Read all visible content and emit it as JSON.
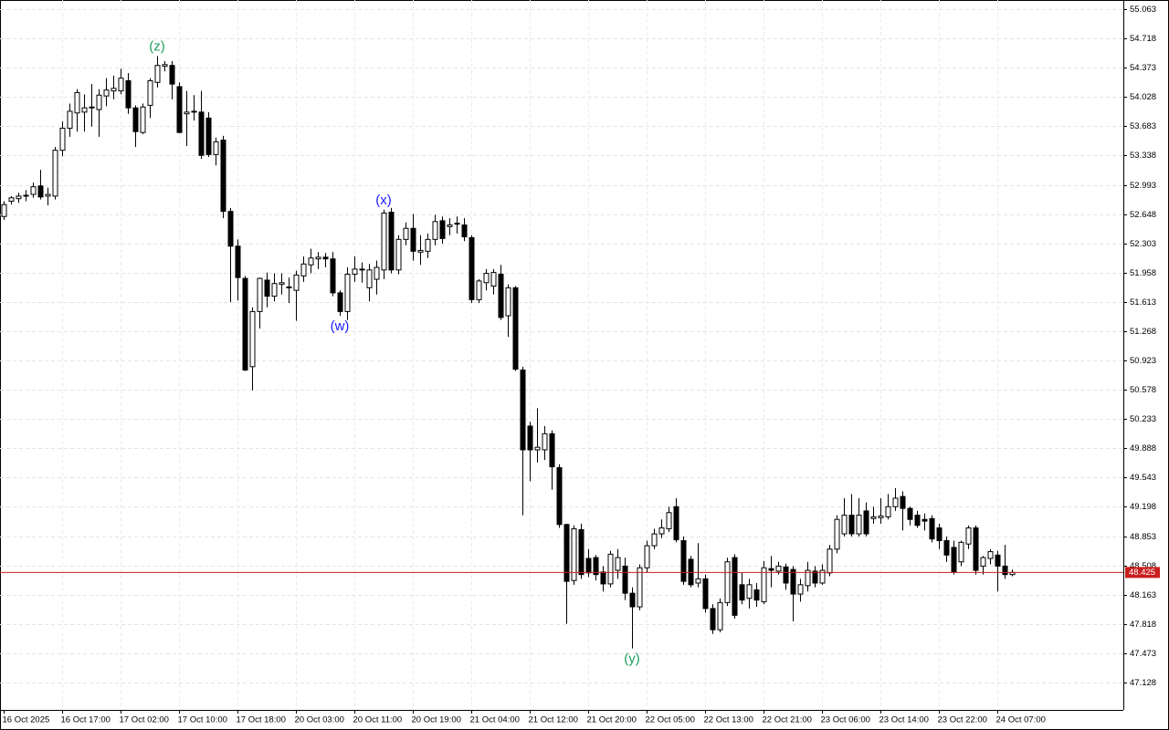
{
  "chart_data": {
    "type": "candlestick",
    "categories": [
      "16 Oct 2025",
      null,
      null,
      null,
      null,
      null,
      null,
      null,
      "16 Oct 17:00",
      null,
      null,
      null,
      null,
      null,
      null,
      null,
      "17 Oct 02:00",
      null,
      null,
      null,
      null,
      null,
      null,
      null,
      "17 Oct 10:00",
      null,
      null,
      null,
      null,
      null,
      null,
      null,
      "17 Oct 18:00",
      null,
      null,
      null,
      null,
      null,
      null,
      null,
      "20 Oct 03:00",
      null,
      null,
      null,
      null,
      null,
      null,
      null,
      "20 Oct 11:00",
      null,
      null,
      null,
      null,
      null,
      null,
      null,
      "20 Oct 19:00",
      null,
      null,
      null,
      null,
      null,
      null,
      null,
      "21 Oct 04:00",
      null,
      null,
      null,
      null,
      null,
      null,
      null,
      "21 Oct 12:00",
      null,
      null,
      null,
      null,
      null,
      null,
      null,
      "21 Oct 20:00",
      null,
      null,
      null,
      null,
      null,
      null,
      null,
      "22 Oct 05:00",
      null,
      null,
      null,
      null,
      null,
      null,
      null,
      "22 Oct 13:00",
      null,
      null,
      null,
      null,
      null,
      null,
      null,
      "22 Oct 21:00",
      null,
      null,
      null,
      null,
      null,
      null,
      null,
      "23 Oct 06:00",
      null,
      null,
      null,
      null,
      null,
      null,
      null,
      "23 Oct 14:00",
      null,
      null,
      null,
      null,
      null,
      null,
      null,
      "23 Oct 22:00",
      null,
      null,
      null,
      null,
      null,
      null,
      null,
      "24 Oct 07:00",
      null,
      null
    ],
    "open": [
      52.62,
      52.8,
      52.83,
      52.86,
      52.88,
      52.98,
      52.86,
      52.86,
      53.4,
      53.66,
      53.84,
      53.85,
      53.9,
      53.88,
      54.04,
      54.1,
      54.1,
      54.22,
      53.9,
      53.61,
      53.93,
      54.2,
      54.39,
      54.4,
      54.15,
      53.83,
      53.85,
      53.85,
      53.78,
      53.35,
      53.52,
      52.68,
      52.27,
      51.89,
      50.85,
      51.5,
      51.87,
      51.68,
      51.82,
      51.78,
      51.75,
      51.92,
      52.05,
      52.12,
      52.14,
      52.12,
      51.72,
      51.5,
      51.94,
      51.99,
      51.78,
      51.88,
      51.99,
      52.67,
      51.99,
      52.35,
      52.48,
      52.2,
      52.21,
      52.35,
      52.57,
      52.5,
      52.53,
      52.52,
      52.37,
      51.64,
      51.84,
      51.8,
      51.94,
      51.45,
      51.78,
      50.81,
      50.15,
      49.87,
      49.87,
      50.06,
      49.66,
      48.99,
      48.33,
      48.93,
      48.59,
      48.6,
      48.43,
      48.29,
      48.45,
      48.5,
      48.18,
      48.02,
      48.48,
      48.74,
      48.88,
      48.94,
      49.2,
      48.8,
      48.58,
      48.3,
      48.35,
      48.0,
      47.75,
      48.07,
      48.6,
      48.28,
      48.12,
      48.22,
      48.08,
      48.47,
      48.44,
      48.49,
      48.46,
      48.17,
      48.27,
      48.44,
      48.3,
      48.42,
      48.7,
      48.88,
      49.1,
      48.88,
      49.15,
      49.06,
      49.07,
      49.08,
      49.2,
      49.32,
      49.18,
      49.1,
      49.05,
      49.06,
      48.95,
      48.8,
      48.72,
      48.55,
      48.76,
      48.95,
      48.5,
      48.59,
      48.63,
      48.5,
      48.4
    ],
    "high": [
      52.8,
      52.86,
      52.9,
      52.93,
      53.02,
      53.17,
      52.96,
      53.44,
      53.74,
      53.95,
      54.12,
      54.06,
      54.18,
      54.12,
      54.25,
      54.28,
      54.36,
      54.31,
      53.93,
      53.95,
      54.25,
      54.51,
      54.45,
      54.45,
      54.2,
      54.1,
      54.05,
      54.1,
      53.85,
      53.55,
      53.57,
      52.72,
      52.35,
      51.92,
      51.55,
      51.9,
      51.96,
      51.95,
      51.95,
      51.9,
      51.98,
      52.15,
      52.24,
      52.2,
      52.19,
      52.2,
      51.75,
      52.02,
      52.15,
      52.08,
      52.06,
      52.1,
      52.7,
      52.72,
      52.4,
      52.55,
      52.65,
      52.4,
      52.42,
      52.64,
      52.62,
      52.6,
      52.62,
      52.6,
      52.4,
      51.88,
      52.0,
      52.0,
      52.05,
      51.82,
      51.8,
      50.85,
      50.2,
      50.36,
      50.15,
      50.1,
      49.7,
      49.0,
      48.98,
      49.0,
      48.7,
      48.63,
      48.5,
      48.68,
      48.7,
      48.6,
      48.25,
      48.52,
      48.8,
      48.94,
      49.05,
      49.2,
      49.3,
      48.85,
      48.62,
      48.77,
      48.4,
      48.05,
      48.12,
      48.6,
      48.64,
      48.42,
      48.35,
      48.3,
      48.56,
      48.62,
      48.55,
      48.53,
      48.5,
      48.35,
      48.55,
      48.5,
      48.52,
      48.75,
      49.1,
      49.3,
      49.35,
      49.3,
      49.25,
      49.2,
      49.3,
      49.35,
      49.42,
      49.38,
      49.2,
      49.15,
      49.12,
      49.1,
      49.0,
      48.85,
      48.8,
      48.8,
      48.98,
      48.98,
      48.62,
      48.7,
      48.68,
      48.75,
      48.46
    ],
    "low": [
      52.58,
      52.76,
      52.78,
      52.8,
      52.84,
      52.82,
      52.75,
      52.82,
      53.33,
      53.56,
      53.62,
      53.62,
      53.68,
      53.56,
      53.92,
      54.0,
      54.06,
      53.83,
      53.44,
      53.59,
      53.78,
      54.14,
      54.33,
      54.0,
      53.6,
      53.45,
      53.75,
      53.3,
      53.32,
      53.22,
      52.6,
      51.61,
      51.63,
      50.8,
      50.57,
      51.3,
      51.55,
      51.62,
      51.7,
      51.6,
      51.39,
      51.85,
      51.95,
      52.0,
      52.02,
      51.68,
      51.45,
      51.4,
      51.85,
      51.84,
      51.62,
      51.7,
      51.88,
      51.95,
      51.94,
      52.28,
      52.1,
      52.05,
      52.13,
      52.28,
      52.3,
      52.4,
      52.42,
      52.33,
      51.6,
      51.6,
      51.75,
      51.7,
      51.4,
      51.2,
      50.8,
      49.1,
      49.5,
      49.72,
      49.75,
      49.4,
      48.95,
      47.82,
      48.28,
      48.35,
      48.37,
      48.33,
      48.2,
      48.25,
      48.35,
      48.1,
      47.53,
      47.98,
      48.42,
      48.7,
      48.83,
      48.9,
      48.78,
      48.28,
      48.25,
      48.25,
      47.95,
      47.7,
      47.72,
      48.03,
      47.88,
      48.05,
      48.0,
      48.02,
      48.05,
      48.25,
      48.4,
      48.22,
      47.85,
      48.08,
      48.2,
      48.25,
      48.28,
      48.38,
      48.65,
      48.85,
      48.85,
      48.85,
      48.85,
      49.0,
      49.0,
      49.05,
      49.15,
      48.92,
      48.98,
      48.95,
      48.92,
      48.78,
      48.7,
      48.55,
      48.4,
      48.5,
      48.7,
      48.4,
      48.4,
      48.52,
      48.2,
      48.35,
      48.38
    ],
    "close": [
      52.76,
      52.84,
      52.86,
      52.87,
      52.97,
      52.85,
      52.88,
      53.4,
      53.66,
      53.86,
      54.08,
      53.9,
      53.91,
      54.05,
      54.11,
      54.13,
      54.25,
      53.9,
      53.62,
      53.91,
      54.22,
      54.4,
      54.41,
      54.18,
      53.61,
      53.85,
      53.86,
      53.34,
      53.35,
      53.5,
      52.68,
      52.27,
      51.9,
      50.81,
      51.5,
      51.89,
      51.68,
      51.83,
      51.84,
      51.79,
      51.93,
      52.06,
      52.13,
      52.14,
      52.12,
      51.72,
      51.5,
      51.94,
      52.0,
      52.0,
      51.99,
      52.02,
      52.66,
      51.99,
      52.35,
      52.48,
      52.21,
      52.22,
      52.35,
      52.56,
      52.36,
      52.52,
      52.54,
      52.38,
      51.64,
      51.86,
      51.95,
      51.96,
      51.43,
      51.78,
      50.82,
      49.87,
      49.87,
      49.9,
      50.06,
      49.67,
      48.99,
      48.32,
      48.94,
      48.4,
      48.42,
      48.4,
      48.29,
      48.64,
      48.6,
      48.18,
      48.02,
      48.48,
      48.74,
      48.88,
      48.95,
      49.13,
      48.81,
      48.32,
      48.28,
      48.35,
      48.0,
      47.75,
      48.07,
      48.55,
      47.92,
      48.1,
      48.28,
      48.1,
      48.48,
      48.45,
      48.5,
      48.3,
      48.17,
      48.28,
      48.45,
      48.3,
      48.45,
      48.7,
      49.05,
      49.1,
      48.88,
      49.1,
      48.88,
      49.08,
      49.09,
      49.2,
      49.3,
      49.18,
      49.05,
      48.98,
      49.03,
      48.82,
      48.8,
      48.63,
      48.43,
      48.78,
      48.95,
      48.45,
      48.6,
      48.67,
      48.5,
      48.4,
      48.425
    ],
    "ylim": [
      46.805,
      55.171
    ],
    "yticks": [
      55.063,
      54.718,
      54.373,
      54.028,
      53.683,
      53.338,
      52.993,
      52.648,
      52.303,
      51.958,
      51.613,
      51.268,
      50.923,
      50.578,
      50.233,
      49.888,
      49.543,
      49.198,
      48.853,
      48.508,
      48.163,
      47.818,
      47.473,
      47.128
    ],
    "grid": true,
    "up_color": "#ffffff",
    "down_color": "#000000",
    "last_price": 48.425,
    "last_price_color": "#c81e1e",
    "annotations": [
      {
        "text": "(z)",
        "color": "#1f9e5a"
      },
      {
        "text": "(x)",
        "color": "#1a1aff"
      },
      {
        "text": "(w)",
        "color": "#1a1aff"
      },
      {
        "text": "(y)",
        "color": "#1f9e5a"
      }
    ]
  }
}
